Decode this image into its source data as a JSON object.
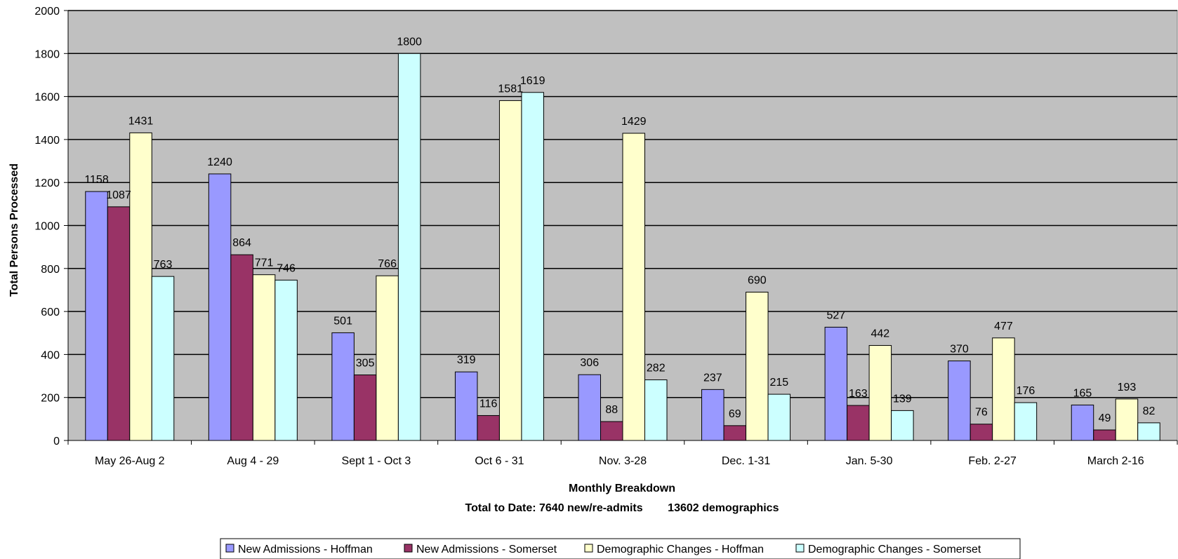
{
  "chart_data": {
    "type": "bar",
    "categories": [
      "May 26-Aug 2",
      "Aug 4 - 29",
      "Sept 1 - Oct 3",
      "Oct 6 - 31",
      "Nov. 3-28",
      "Dec. 1-31",
      "Jan. 5-30",
      "Feb. 2-27",
      "March 2-16"
    ],
    "series": [
      {
        "name": "New Admissions - Hoffman",
        "color": "#9999FF",
        "values": [
          1158,
          1240,
          501,
          319,
          306,
          237,
          527,
          370,
          165
        ]
      },
      {
        "name": "New Admissions - Somerset",
        "color": "#993366",
        "values": [
          1087,
          864,
          305,
          116,
          88,
          69,
          163,
          76,
          49
        ]
      },
      {
        "name": "Demographic Changes - Hoffman",
        "color": "#FFFFCC",
        "values": [
          1431,
          771,
          766,
          1581,
          1429,
          690,
          442,
          477,
          193
        ]
      },
      {
        "name": "Demographic Changes - Somerset",
        "color": "#CCFFFF",
        "values": [
          763,
          746,
          1800,
          1619,
          282,
          215,
          139,
          176,
          82
        ]
      }
    ],
    "title": "",
    "xlabel": "Monthly Breakdown",
    "xlabel_line2": "Total to Date: 7640 new/re-admits        13602 demographics",
    "ylabel": "Total Persons Processed",
    "ylim": [
      0,
      2000
    ],
    "yticks": [
      0,
      200,
      400,
      600,
      800,
      1000,
      1200,
      1400,
      1600,
      1800,
      2000
    ],
    "grid": true,
    "plot_background": "#C0C0C0",
    "legend_position": "bottom"
  }
}
